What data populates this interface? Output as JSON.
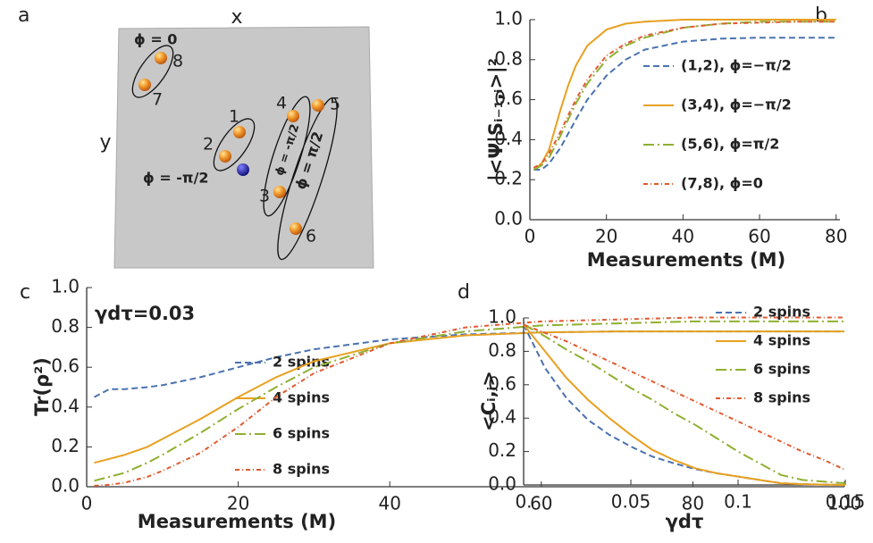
{
  "panel_a": {
    "label": "a",
    "x_label": "x",
    "y_label": "y",
    "spins": [
      "1",
      "2",
      "3",
      "4",
      "5",
      "6",
      "7",
      "8"
    ],
    "phase_labels": [
      "ϕ = 0",
      "ϕ = -π/2",
      "ϕ = -π/2",
      "ϕ = π/2"
    ]
  },
  "chart_data": [
    {
      "type": "line",
      "panel": "b",
      "ylabel": "|<Ψ|Sᵢ₋₁,ᵢ>|²",
      "xlabel": "Measurements (M)",
      "x": [
        1,
        3,
        5,
        8,
        10,
        12,
        15,
        20,
        25,
        30,
        40,
        50,
        60,
        70,
        80
      ],
      "xlim": [
        0,
        81
      ],
      "ylim": [
        0,
        1.0
      ],
      "xticks": [
        0,
        20,
        40,
        60,
        80
      ],
      "yticks": [
        {
          "value": 0,
          "label": "0.0"
        },
        {
          "value": 0.2,
          "label": "0.2"
        },
        {
          "value": 0.4,
          "label": "0.4"
        },
        {
          "value": 0.6,
          "label": "0.6"
        },
        {
          "value": 0.8,
          "label": "0.8"
        },
        {
          "value": 1.0,
          "label": "1.0"
        }
      ],
      "series": [
        {
          "name": "(1,2), ϕ=−π/2",
          "color": "#4a72b0",
          "dash": "7,4",
          "values": [
            0.25,
            0.25,
            0.28,
            0.36,
            0.43,
            0.5,
            0.6,
            0.72,
            0.8,
            0.85,
            0.89,
            0.905,
            0.91,
            0.91,
            0.91
          ]
        },
        {
          "name": "(3,4), ϕ=−π/2",
          "color": "#e8a020",
          "dash": "none",
          "values": [
            0.25,
            0.28,
            0.35,
            0.55,
            0.67,
            0.77,
            0.87,
            0.95,
            0.98,
            0.99,
            1.0,
            1.0,
            1.0,
            1.0,
            1.0
          ]
        },
        {
          "name": "(5,6), ϕ=π/2",
          "color": "#8fb030",
          "dash": "12,4,2,4",
          "values": [
            0.25,
            0.27,
            0.31,
            0.42,
            0.5,
            0.58,
            0.68,
            0.8,
            0.87,
            0.91,
            0.96,
            0.98,
            0.99,
            0.99,
            0.99
          ]
        },
        {
          "name": "(7,8), ϕ=0",
          "color": "#e05a30",
          "dash": "5,3,1,3",
          "values": [
            0.26,
            0.28,
            0.33,
            0.44,
            0.52,
            0.6,
            0.7,
            0.82,
            0.88,
            0.92,
            0.96,
            0.98,
            0.985,
            0.99,
            0.99
          ]
        }
      ]
    },
    {
      "type": "line",
      "panel": "c",
      "ylabel": "Tr(ρ²)",
      "xlabel": "Measurements (M)",
      "annotation": "γdτ=0.03",
      "x": [
        1,
        3,
        5,
        8,
        10,
        15,
        20,
        25,
        30,
        40,
        50,
        60,
        70,
        80,
        90,
        100
      ],
      "xlim": [
        0,
        100
      ],
      "ylim": [
        0,
        1.0
      ],
      "xticks": [
        0,
        20,
        40,
        60,
        80,
        100
      ],
      "yticks": [
        {
          "value": 0,
          "label": "0.0"
        },
        {
          "value": 0.2,
          "label": "0.2"
        },
        {
          "value": 0.4,
          "label": "0.4"
        },
        {
          "value": 0.6,
          "label": "0.6"
        },
        {
          "value": 0.8,
          "label": "0.8"
        },
        {
          "value": 1.0,
          "label": "1.0"
        }
      ],
      "series": [
        {
          "name": "2 spins",
          "color": "#4a72b0",
          "dash": "7,4",
          "values": [
            0.45,
            0.49,
            0.49,
            0.5,
            0.51,
            0.55,
            0.6,
            0.65,
            0.69,
            0.74,
            0.765,
            0.775,
            0.78,
            0.78,
            0.78,
            0.78
          ]
        },
        {
          "name": "4 spins",
          "color": "#e8a020",
          "dash": "none",
          "values": [
            0.12,
            0.14,
            0.16,
            0.2,
            0.24,
            0.34,
            0.45,
            0.55,
            0.63,
            0.72,
            0.76,
            0.775,
            0.78,
            0.78,
            0.78,
            0.78
          ]
        },
        {
          "name": "6 spins",
          "color": "#8fb030",
          "dash": "12,4,2,4",
          "values": [
            0.03,
            0.05,
            0.07,
            0.12,
            0.16,
            0.27,
            0.39,
            0.5,
            0.6,
            0.72,
            0.78,
            0.81,
            0.82,
            0.83,
            0.83,
            0.83
          ]
        },
        {
          "name": "8 spins",
          "color": "#e05a30",
          "dash": "5,3,1,3",
          "values": [
            0.005,
            0.01,
            0.02,
            0.05,
            0.08,
            0.17,
            0.3,
            0.45,
            0.57,
            0.72,
            0.8,
            0.83,
            0.84,
            0.85,
            0.85,
            0.85
          ]
        }
      ]
    },
    {
      "type": "line",
      "panel": "d",
      "ylabel": "<Cᵢ,ⱼ>",
      "xlabel": "γdτ",
      "x": [
        0,
        0.01,
        0.02,
        0.03,
        0.04,
        0.05,
        0.06,
        0.07,
        0.08,
        0.09,
        0.1,
        0.11,
        0.12,
        0.13,
        0.14,
        0.15
      ],
      "xlim": [
        0,
        0.15
      ],
      "ylim": [
        0,
        1.0
      ],
      "xticks": [
        {
          "value": 0,
          "label": "0."
        },
        0.05,
        0.1,
        0.15
      ],
      "yticks": [
        {
          "value": 0,
          "label": "0.0"
        },
        {
          "value": 0.2,
          "label": "0.2"
        },
        {
          "value": 0.4,
          "label": "0.4"
        },
        {
          "value": 0.6,
          "label": "0.6"
        },
        {
          "value": 0.8,
          "label": "0.8"
        },
        {
          "value": 1.0,
          "label": "1.0"
        }
      ],
      "series": [
        {
          "name": "2 spins",
          "color": "#4a72b0",
          "dash": "7,4",
          "values": [
            0.96,
            0.7,
            0.52,
            0.39,
            0.3,
            0.23,
            0.17,
            0.13,
            0.095,
            0.07,
            0.05,
            0.03,
            0.01,
            0.005,
            0.002,
            0.0
          ]
        },
        {
          "name": "4 spins",
          "color": "#e8a020",
          "dash": "none",
          "values": [
            0.96,
            0.8,
            0.64,
            0.51,
            0.4,
            0.3,
            0.21,
            0.15,
            0.1,
            0.07,
            0.05,
            0.03,
            0.01,
            0.005,
            0.002,
            0.0
          ]
        },
        {
          "name": "6 spins",
          "color": "#8fb030",
          "dash": "12,4,2,4",
          "values": [
            0.96,
            0.89,
            0.81,
            0.74,
            0.66,
            0.58,
            0.51,
            0.43,
            0.36,
            0.28,
            0.2,
            0.13,
            0.06,
            0.03,
            0.02,
            0.01
          ]
        },
        {
          "name": "8 spins",
          "color": "#e05a30",
          "dash": "5,3,1,3",
          "values": [
            0.96,
            0.91,
            0.86,
            0.8,
            0.74,
            0.68,
            0.62,
            0.56,
            0.5,
            0.44,
            0.38,
            0.32,
            0.26,
            0.2,
            0.15,
            0.09
          ]
        }
      ]
    }
  ]
}
